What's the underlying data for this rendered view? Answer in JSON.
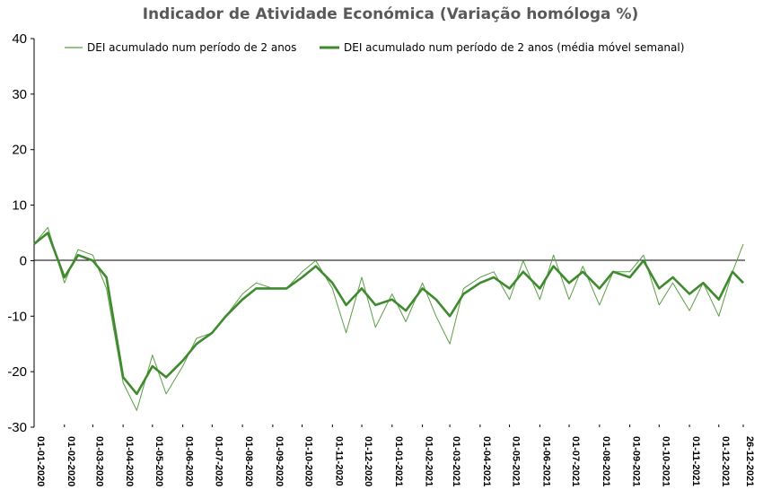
{
  "chart_data": {
    "type": "line",
    "title": "Indicador de Atividade Económica (Variação homóloga %)",
    "xlabel": "",
    "ylabel": "",
    "ylim": [
      -30,
      40
    ],
    "yticks": [
      40,
      30,
      20,
      10,
      0,
      -10,
      -20,
      -30
    ],
    "grid": false,
    "legend_position": "top",
    "x_ticks": [
      "01-01-2020",
      "01-02-2020",
      "01-03-2020",
      "01-04-2020",
      "01-05-2020",
      "01-06-2020",
      "01-07-2020",
      "01-08-2020",
      "01-09-2020",
      "01-10-2020",
      "01-11-2020",
      "01-12-2020",
      "01-01-2021",
      "01-02-2021",
      "01-03-2021",
      "01-04-2021",
      "01-05-2021",
      "01-06-2021",
      "01-07-2021",
      "01-08-2021",
      "01-09-2021",
      "01-10-2021",
      "01-11-2021",
      "01-12-2021",
      "26-12-2021"
    ],
    "colors": {
      "daily": "#5a9e45",
      "weekly": "#3f8a2e",
      "axis": "#000000",
      "zero_line": "#000000"
    },
    "series": [
      {
        "name": "DEI acumulado num período de 2 anos",
        "style": "thin",
        "x": [
          "01-01-2020",
          "15-01-2020",
          "01-02-2020",
          "15-02-2020",
          "01-03-2020",
          "15-03-2020",
          "01-04-2020",
          "15-04-2020",
          "01-05-2020",
          "15-05-2020",
          "01-06-2020",
          "15-06-2020",
          "01-07-2020",
          "15-07-2020",
          "01-08-2020",
          "15-08-2020",
          "01-09-2020",
          "15-09-2020",
          "01-10-2020",
          "15-10-2020",
          "01-11-2020",
          "15-11-2020",
          "01-12-2020",
          "15-12-2020",
          "01-01-2021",
          "15-01-2021",
          "01-02-2021",
          "15-02-2021",
          "01-03-2021",
          "15-03-2021",
          "01-04-2021",
          "15-04-2021",
          "01-05-2021",
          "15-05-2021",
          "01-06-2021",
          "15-06-2021",
          "01-07-2021",
          "15-07-2021",
          "01-08-2021",
          "15-08-2021",
          "01-09-2021",
          "15-09-2021",
          "01-10-2021",
          "15-10-2021",
          "01-11-2021",
          "15-11-2021",
          "01-12-2021",
          "15-12-2021",
          "26-12-2021"
        ],
        "values": [
          3,
          6,
          -4,
          2,
          1,
          -5,
          -22,
          -27,
          -17,
          -24,
          -19,
          -14,
          -13,
          -10,
          -6,
          -4,
          -5,
          -5,
          -2,
          0,
          -5,
          -13,
          -3,
          -12,
          -6,
          -11,
          -4,
          -10,
          -15,
          -5,
          -3,
          -2,
          -7,
          0,
          -7,
          1,
          -7,
          -1,
          -8,
          -2,
          -2,
          1,
          -8,
          -4,
          -9,
          -4,
          -10,
          -2,
          3
        ]
      },
      {
        "name": "DEI acumulado num período de 2 anos (média móvel semanal)",
        "style": "thick",
        "x": [
          "01-01-2020",
          "15-01-2020",
          "01-02-2020",
          "15-02-2020",
          "01-03-2020",
          "15-03-2020",
          "01-04-2020",
          "15-04-2020",
          "01-05-2020",
          "15-05-2020",
          "01-06-2020",
          "15-06-2020",
          "01-07-2020",
          "15-07-2020",
          "01-08-2020",
          "15-08-2020",
          "01-09-2020",
          "15-09-2020",
          "01-10-2020",
          "15-10-2020",
          "01-11-2020",
          "15-11-2020",
          "01-12-2020",
          "15-12-2020",
          "01-01-2021",
          "15-01-2021",
          "01-02-2021",
          "15-02-2021",
          "01-03-2021",
          "15-03-2021",
          "01-04-2021",
          "15-04-2021",
          "01-05-2021",
          "15-05-2021",
          "01-06-2021",
          "15-06-2021",
          "01-07-2021",
          "15-07-2021",
          "01-08-2021",
          "15-08-2021",
          "01-09-2021",
          "15-09-2021",
          "01-10-2021",
          "15-10-2021",
          "01-11-2021",
          "15-11-2021",
          "01-12-2021",
          "15-12-2021",
          "26-12-2021"
        ],
        "values": [
          3,
          5,
          -3,
          1,
          0,
          -3,
          -21,
          -24,
          -19,
          -21,
          -18,
          -15,
          -13,
          -10,
          -7,
          -5,
          -5,
          -5,
          -3,
          -1,
          -4,
          -8,
          -5,
          -8,
          -7,
          -9,
          -5,
          -7,
          -10,
          -6,
          -4,
          -3,
          -5,
          -2,
          -5,
          -1,
          -4,
          -2,
          -5,
          -2,
          -3,
          0,
          -5,
          -3,
          -6,
          -4,
          -7,
          -2,
          -4
        ]
      }
    ]
  }
}
